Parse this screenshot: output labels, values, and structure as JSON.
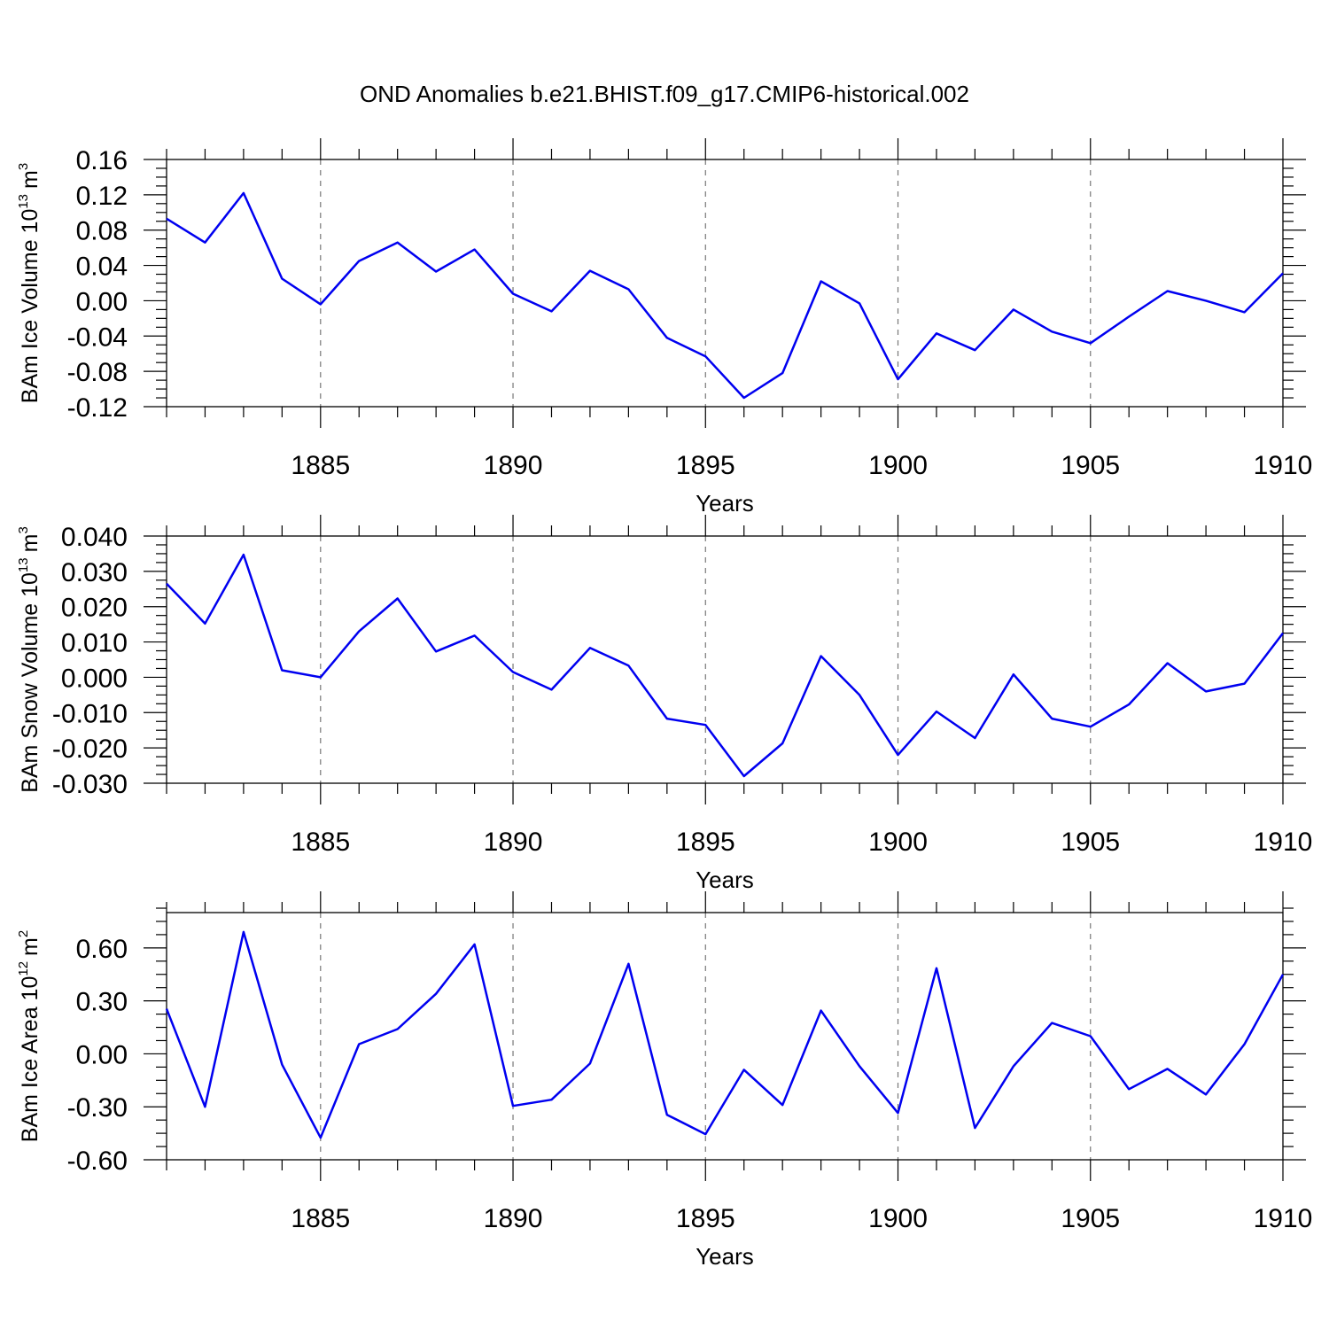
{
  "title": "OND Anomalies b.e21.BHIST.f09_g17.CMIP6-historical.002",
  "chart_data": [
    {
      "type": "line",
      "xlabel": "Years",
      "ylabel": "BAm Ice Volume 10",
      "ylabel_exp": "13",
      "ylabel_unit": "m",
      "ylabel_unit_exp": "3",
      "xlim": [
        1881,
        1910
      ],
      "ylim": [
        -0.12,
        0.16
      ],
      "xticks": [
        1885,
        1890,
        1895,
        1900,
        1905,
        1910
      ],
      "xtick_labels": [
        "1885",
        "1890",
        "1895",
        "1900",
        "1905",
        "1910"
      ],
      "yticks": [
        -0.12,
        -0.08,
        -0.04,
        0.0,
        0.04,
        0.08,
        0.12,
        0.16
      ],
      "ytick_labels": [
        "-0.12",
        "-0.08",
        "-0.04",
        "0.00",
        "0.04",
        "0.08",
        "0.12",
        "0.16"
      ],
      "grid": "vertical dashed at major x ticks",
      "x": [
        1881,
        1882,
        1883,
        1884,
        1885,
        1886,
        1887,
        1888,
        1889,
        1890,
        1891,
        1892,
        1893,
        1894,
        1895,
        1896,
        1897,
        1898,
        1899,
        1900,
        1901,
        1902,
        1903,
        1904,
        1905,
        1906,
        1907,
        1908,
        1909,
        1910
      ],
      "values": [
        0.093,
        0.066,
        0.122,
        0.025,
        -0.004,
        0.045,
        0.066,
        0.033,
        0.058,
        0.008,
        -0.012,
        0.034,
        0.013,
        -0.042,
        -0.063,
        -0.11,
        -0.082,
        0.022,
        -0.003,
        -0.089,
        -0.037,
        -0.056,
        -0.01,
        -0.035,
        -0.048,
        -0.018,
        0.011,
        0.0,
        -0.013,
        0.031
      ],
      "color": "#0000f0"
    },
    {
      "type": "line",
      "xlabel": "Years",
      "ylabel": "BAm Snow Volume 10",
      "ylabel_exp": "13",
      "ylabel_unit": "m",
      "ylabel_unit_exp": "3",
      "xlim": [
        1881,
        1910
      ],
      "ylim": [
        -0.03,
        0.04
      ],
      "xticks": [
        1885,
        1890,
        1895,
        1900,
        1905,
        1910
      ],
      "xtick_labels": [
        "1885",
        "1890",
        "1895",
        "1900",
        "1905",
        "1910"
      ],
      "yticks": [
        -0.03,
        -0.02,
        -0.01,
        0.0,
        0.01,
        0.02,
        0.03,
        0.04
      ],
      "ytick_labels": [
        "-0.030",
        "-0.020",
        "-0.010",
        "0.000",
        "0.010",
        "0.020",
        "0.030",
        "0.040"
      ],
      "grid": "vertical dashed at major x ticks",
      "x": [
        1881,
        1882,
        1883,
        1884,
        1885,
        1886,
        1887,
        1888,
        1889,
        1890,
        1891,
        1892,
        1893,
        1894,
        1895,
        1896,
        1897,
        1898,
        1899,
        1900,
        1901,
        1902,
        1903,
        1904,
        1905,
        1906,
        1907,
        1908,
        1909,
        1910
      ],
      "values": [
        0.0265,
        0.0152,
        0.0347,
        0.002,
        0.0,
        0.013,
        0.0223,
        0.0073,
        0.0118,
        0.0015,
        -0.0035,
        0.0083,
        0.0033,
        -0.0117,
        -0.0135,
        -0.028,
        -0.0187,
        0.006,
        -0.005,
        -0.022,
        -0.0097,
        -0.0172,
        0.0008,
        -0.0117,
        -0.014,
        -0.0077,
        0.004,
        -0.004,
        -0.0018,
        0.0125
      ],
      "color": "#0000f0"
    },
    {
      "type": "line",
      "xlabel": "Years",
      "ylabel": "BAm Ice Area 10",
      "ylabel_exp": "12",
      "ylabel_unit": "m",
      "ylabel_unit_exp": "2",
      "xlim": [
        1881,
        1910
      ],
      "ylim": [
        -0.6,
        0.8
      ],
      "xticks": [
        1885,
        1890,
        1895,
        1900,
        1905,
        1910
      ],
      "xtick_labels": [
        "1885",
        "1890",
        "1895",
        "1900",
        "1905",
        "1910"
      ],
      "yticks": [
        -0.6,
        -0.3,
        0.0,
        0.3,
        0.6
      ],
      "ytick_labels": [
        "-0.60",
        "-0.30",
        "0.00",
        "0.30",
        "0.60"
      ],
      "grid": "vertical dashed at major x ticks",
      "x": [
        1881,
        1882,
        1883,
        1884,
        1885,
        1886,
        1887,
        1888,
        1889,
        1890,
        1891,
        1892,
        1893,
        1894,
        1895,
        1896,
        1897,
        1898,
        1899,
        1900,
        1901,
        1902,
        1903,
        1904,
        1905,
        1906,
        1907,
        1908,
        1909,
        1910
      ],
      "values": [
        0.255,
        -0.3,
        0.69,
        -0.06,
        -0.475,
        0.055,
        0.14,
        0.34,
        0.62,
        -0.295,
        -0.26,
        -0.055,
        0.51,
        -0.345,
        -0.455,
        -0.09,
        -0.29,
        0.245,
        -0.07,
        -0.335,
        0.485,
        -0.42,
        -0.07,
        0.175,
        0.1,
        -0.2,
        -0.085,
        -0.23,
        0.055,
        0.45
      ],
      "color": "#0000f0"
    }
  ]
}
